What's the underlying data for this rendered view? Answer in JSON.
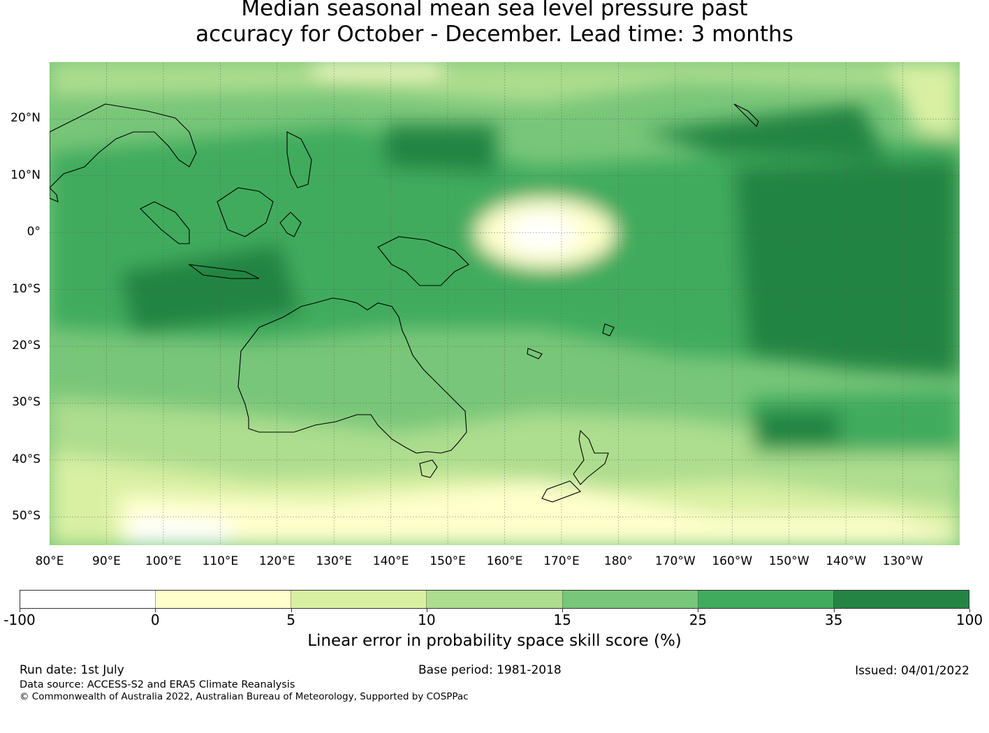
{
  "title_line1": "Median seasonal mean sea level pressure past",
  "title_line2": "accuracy for October - December. Lead time: 3 months",
  "map": {
    "lat_labels": [
      "20°N",
      "10°N",
      "0°",
      "10°S",
      "20°S",
      "30°S",
      "40°S",
      "50°S"
    ],
    "lat_values": [
      20,
      10,
      0,
      -10,
      -20,
      -30,
      -40,
      -50
    ],
    "lon_labels": [
      "80°E",
      "90°E",
      "100°E",
      "110°E",
      "120°E",
      "130°E",
      "140°E",
      "150°E",
      "160°E",
      "170°E",
      "180°",
      "170°W",
      "160°W",
      "150°W",
      "140°W",
      "130°W"
    ],
    "lon_values": [
      80,
      90,
      100,
      110,
      120,
      130,
      140,
      150,
      160,
      170,
      180,
      190,
      200,
      210,
      220,
      230
    ],
    "lon_range": [
      80,
      240
    ],
    "lat_range": [
      -55,
      30
    ],
    "land_outline_color": "#000000",
    "gridlines": true
  },
  "colorbar": {
    "label": "Linear error in probability space skill score (%)",
    "ticks": [
      "-100",
      "0",
      "5",
      "10",
      "15",
      "25",
      "35",
      "100"
    ],
    "colors": [
      "#ffffff",
      "#ffffcc",
      "#d9f0a3",
      "#addd8e",
      "#78c679",
      "#41ab5d",
      "#238443"
    ]
  },
  "footer": {
    "run_date": "Run date: 1st July",
    "base_period": "Base period: 1981-2018",
    "issued": "Issued: 04/01/2022",
    "data_source": "Data source: ACCESS-S2 and ERA5 Climate Reanalysis",
    "copyright": "© Commonwealth of Australia 2022, Australian Bureau of Meteorology, Supported by COSPPac"
  }
}
